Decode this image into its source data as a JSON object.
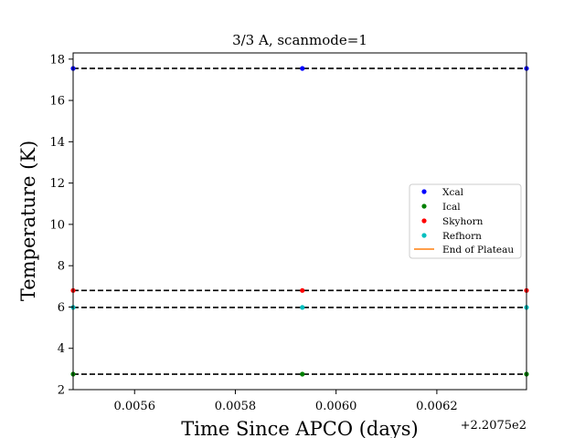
{
  "chart_data": {
    "type": "scatter",
    "title": "3/3 A, scanmode=1",
    "xlabel": "Time Since APCO (days)",
    "ylabel": "Temperature (K)",
    "x_offset_label": "+2.2075e2",
    "xlim": [
      0.005478,
      0.006378
    ],
    "ylim": [
      2.0,
      18.3
    ],
    "xticks": [
      0.0056,
      0.0058,
      0.006,
      0.0062
    ],
    "xtick_labels": [
      "0.0056",
      "0.0058",
      "0.0060",
      "0.0062"
    ],
    "yticks": [
      2,
      4,
      6,
      8,
      10,
      12,
      14,
      16,
      18
    ],
    "ytick_labels": [
      "2",
      "4",
      "6",
      "8",
      "10",
      "12",
      "14",
      "16",
      "18"
    ],
    "grid": false,
    "legend_position": "center-right",
    "x": [
      0.005478,
      0.005933,
      0.006378
    ],
    "series": [
      {
        "name": "Xcal",
        "color": "#0000ff",
        "values": [
          17.55,
          17.55,
          17.55
        ],
        "mean": 17.55
      },
      {
        "name": "Ical",
        "color": "#008000",
        "values": [
          2.75,
          2.75,
          2.75
        ],
        "mean": 2.75
      },
      {
        "name": "Skyhorn",
        "color": "#ff0000",
        "values": [
          6.8,
          6.8,
          6.8
        ],
        "mean": 6.8
      },
      {
        "name": "Refhorn",
        "color": "#00bfbf",
        "values": [
          5.98,
          5.98,
          5.98
        ],
        "mean": 5.98
      }
    ],
    "end_of_plateau": {
      "name": "End of Plateau",
      "color": "#ff7f0e"
    }
  }
}
